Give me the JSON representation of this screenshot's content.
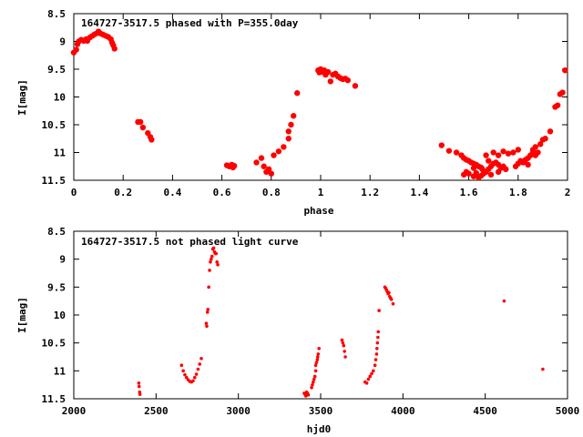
{
  "colors": {
    "marker": "#ff0000",
    "axes": "#000000",
    "background": "#ffffff"
  },
  "chart_data": [
    {
      "type": "scatter",
      "title": "164727-3517.5 phased with P=355.0day",
      "xlabel": "phase",
      "ylabel": "I[mag]",
      "xlim": [
        0,
        2
      ],
      "ylim": [
        8.5,
        11.5
      ],
      "y_inverted": true,
      "grid": false,
      "xticks": [
        "0",
        "0.2",
        "0.4",
        "0.6",
        "0.8",
        "1",
        "1.2",
        "1.4",
        "1.6",
        "1.8",
        "2"
      ],
      "yticks": [
        "8.5",
        "9",
        "9.5",
        "10",
        "10.5",
        "11",
        "11.5"
      ],
      "marker": "filled-circle-large",
      "points": [
        [
          0.0,
          9.2
        ],
        [
          0.01,
          9.15
        ],
        [
          0.015,
          9.05
        ],
        [
          0.02,
          9.0
        ],
        [
          0.03,
          8.97
        ],
        [
          0.04,
          8.99
        ],
        [
          0.05,
          8.96
        ],
        [
          0.055,
          8.99
        ],
        [
          0.065,
          8.93
        ],
        [
          0.075,
          8.9
        ],
        [
          0.085,
          8.87
        ],
        [
          0.095,
          8.85
        ],
        [
          0.1,
          8.82
        ],
        [
          0.11,
          8.86
        ],
        [
          0.12,
          8.88
        ],
        [
          0.13,
          8.9
        ],
        [
          0.14,
          8.92
        ],
        [
          0.15,
          8.96
        ],
        [
          0.155,
          9.02
        ],
        [
          0.16,
          9.07
        ],
        [
          0.165,
          9.13
        ],
        [
          0.26,
          10.45
        ],
        [
          0.27,
          10.45
        ],
        [
          0.28,
          10.55
        ],
        [
          0.3,
          10.65
        ],
        [
          0.31,
          10.72
        ],
        [
          0.315,
          10.77
        ],
        [
          0.62,
          11.23
        ],
        [
          0.63,
          11.25
        ],
        [
          0.64,
          11.22
        ],
        [
          0.645,
          11.27
        ],
        [
          0.65,
          11.24
        ],
        [
          0.74,
          11.18
        ],
        [
          0.76,
          11.1
        ],
        [
          0.77,
          11.25
        ],
        [
          0.78,
          11.35
        ],
        [
          0.79,
          11.3
        ],
        [
          0.8,
          11.38
        ],
        [
          0.81,
          11.05
        ],
        [
          0.83,
          10.98
        ],
        [
          0.85,
          10.9
        ],
        [
          0.87,
          10.75
        ],
        [
          0.87,
          10.62
        ],
        [
          0.88,
          10.5
        ],
        [
          0.89,
          10.34
        ],
        [
          0.905,
          9.93
        ],
        [
          0.99,
          9.52
        ],
        [
          0.995,
          9.56
        ],
        [
          1.0,
          9.5
        ],
        [
          1.01,
          9.55
        ],
        [
          1.015,
          9.52
        ],
        [
          1.02,
          9.6
        ],
        [
          1.03,
          9.55
        ],
        [
          1.04,
          9.72
        ],
        [
          1.05,
          9.6
        ],
        [
          1.06,
          9.58
        ],
        [
          1.07,
          9.63
        ],
        [
          1.08,
          9.66
        ],
        [
          1.09,
          9.68
        ],
        [
          1.1,
          9.67
        ],
        [
          1.11,
          9.7
        ],
        [
          1.14,
          9.8
        ],
        [
          1.49,
          10.87
        ],
        [
          1.52,
          10.97
        ],
        [
          1.55,
          11.0
        ],
        [
          1.57,
          11.05
        ],
        [
          1.58,
          11.1
        ],
        [
          1.59,
          11.13
        ],
        [
          1.6,
          11.15
        ],
        [
          1.61,
          11.18
        ],
        [
          1.62,
          11.2
        ],
        [
          1.63,
          11.22
        ],
        [
          1.64,
          11.25
        ],
        [
          1.65,
          11.27
        ],
        [
          1.655,
          11.3
        ],
        [
          1.58,
          11.4
        ],
        [
          1.6,
          11.38
        ],
        [
          1.62,
          11.43
        ],
        [
          1.63,
          11.37
        ],
        [
          1.64,
          11.45
        ],
        [
          1.65,
          11.42
        ],
        [
          1.66,
          11.38
        ],
        [
          1.67,
          11.35
        ],
        [
          1.68,
          11.3
        ],
        [
          1.69,
          11.25
        ],
        [
          1.7,
          11.2
        ],
        [
          1.71,
          11.18
        ],
        [
          1.72,
          11.22
        ],
        [
          1.73,
          11.28
        ],
        [
          1.74,
          11.25
        ],
        [
          1.67,
          11.05
        ],
        [
          1.68,
          11.15
        ],
        [
          1.7,
          11.0
        ],
        [
          1.72,
          11.05
        ],
        [
          1.74,
          10.98
        ],
        [
          1.76,
          11.02
        ],
        [
          1.78,
          11.0
        ],
        [
          1.8,
          10.95
        ],
        [
          1.79,
          11.25
        ],
        [
          1.8,
          11.2
        ],
        [
          1.81,
          11.15
        ],
        [
          1.82,
          11.18
        ],
        [
          1.83,
          11.13
        ],
        [
          1.84,
          11.1
        ],
        [
          1.85,
          11.05
        ],
        [
          1.86,
          11.0
        ],
        [
          1.86,
          10.95
        ],
        [
          1.87,
          10.9
        ],
        [
          1.87,
          11.05
        ],
        [
          1.88,
          11.0
        ],
        [
          1.89,
          10.85
        ],
        [
          1.9,
          10.77
        ],
        [
          1.91,
          10.75
        ],
        [
          1.93,
          10.62
        ],
        [
          1.95,
          10.18
        ],
        [
          1.96,
          10.15
        ],
        [
          1.97,
          9.95
        ],
        [
          1.98,
          9.92
        ],
        [
          1.99,
          9.52
        ],
        [
          1.69,
          11.4
        ],
        [
          1.72,
          11.35
        ],
        [
          1.75,
          11.3
        ],
        [
          1.62,
          11.28
        ],
        [
          1.59,
          11.35
        ],
        [
          1.84,
          11.22
        ]
      ]
    },
    {
      "type": "scatter",
      "title": "164727-3517.5 not phased light curve",
      "xlabel": "hjd0",
      "ylabel": "I[mag]",
      "xlim": [
        2000,
        5000
      ],
      "ylim": [
        8.5,
        11.5
      ],
      "y_inverted": true,
      "grid": false,
      "xticks": [
        "2000",
        "2500",
        "3000",
        "3500",
        "4000",
        "4500",
        "5000"
      ],
      "yticks": [
        "8.5",
        "9",
        "9.5",
        "10",
        "10.5",
        "11",
        "11.5"
      ],
      "marker": "filled-circle-small",
      "points": [
        [
          2395,
          11.22
        ],
        [
          2397,
          11.28
        ],
        [
          2400,
          11.38
        ],
        [
          2402,
          11.42
        ],
        [
          2655,
          10.9
        ],
        [
          2665,
          11.0
        ],
        [
          2675,
          11.07
        ],
        [
          2685,
          11.12
        ],
        [
          2695,
          11.16
        ],
        [
          2705,
          11.19
        ],
        [
          2715,
          11.2
        ],
        [
          2725,
          11.18
        ],
        [
          2735,
          11.12
        ],
        [
          2745,
          11.06
        ],
        [
          2755,
          10.97
        ],
        [
          2765,
          10.88
        ],
        [
          2775,
          10.78
        ],
        [
          2805,
          10.15
        ],
        [
          2808,
          10.2
        ],
        [
          2812,
          9.95
        ],
        [
          2815,
          9.9
        ],
        [
          2820,
          9.5
        ],
        [
          2825,
          9.2
        ],
        [
          2830,
          9.05
        ],
        [
          2835,
          9.0
        ],
        [
          2840,
          8.95
        ],
        [
          2845,
          8.82
        ],
        [
          2850,
          8.8
        ],
        [
          2855,
          8.87
        ],
        [
          2860,
          8.9
        ],
        [
          2865,
          8.9
        ],
        [
          2870,
          9.05
        ],
        [
          2875,
          9.1
        ],
        [
          3400,
          11.4
        ],
        [
          3405,
          11.42
        ],
        [
          3410,
          11.45
        ],
        [
          3415,
          11.38
        ],
        [
          3420,
          11.4
        ],
        [
          3425,
          11.43
        ],
        [
          3445,
          11.3
        ],
        [
          3450,
          11.25
        ],
        [
          3455,
          11.2
        ],
        [
          3460,
          11.15
        ],
        [
          3465,
          11.1
        ],
        [
          3470,
          11.0
        ],
        [
          3470,
          10.9
        ],
        [
          3475,
          10.85
        ],
        [
          3480,
          10.8
        ],
        [
          3482,
          10.75
        ],
        [
          3485,
          10.7
        ],
        [
          3490,
          10.6
        ],
        [
          3630,
          10.45
        ],
        [
          3635,
          10.5
        ],
        [
          3640,
          10.55
        ],
        [
          3645,
          10.65
        ],
        [
          3650,
          10.75
        ],
        [
          3770,
          11.2
        ],
        [
          3780,
          11.22
        ],
        [
          3790,
          11.15
        ],
        [
          3800,
          11.1
        ],
        [
          3810,
          11.05
        ],
        [
          3820,
          11.0
        ],
        [
          3830,
          10.9
        ],
        [
          3835,
          10.8
        ],
        [
          3840,
          10.7
        ],
        [
          3842,
          10.6
        ],
        [
          3845,
          10.5
        ],
        [
          3848,
          10.4
        ],
        [
          3850,
          10.3
        ],
        [
          3855,
          9.92
        ],
        [
          3890,
          9.5
        ],
        [
          3895,
          9.52
        ],
        [
          3900,
          9.55
        ],
        [
          3905,
          9.58
        ],
        [
          3910,
          9.62
        ],
        [
          3915,
          9.6
        ],
        [
          3920,
          9.67
        ],
        [
          3925,
          9.7
        ],
        [
          3930,
          9.72
        ],
        [
          3940,
          9.8
        ],
        [
          4615,
          9.75
        ],
        [
          4850,
          10.97
        ]
      ]
    }
  ]
}
